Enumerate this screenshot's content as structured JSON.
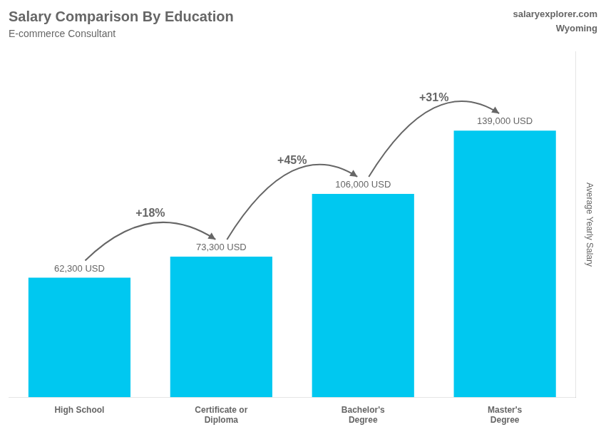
{
  "chart_data": {
    "type": "bar",
    "title": "Salary Comparison By Education",
    "subtitle": "E-commerce Consultant",
    "ylabel": "Average Yearly Salary",
    "categories": [
      "High School",
      "Certificate or\nDiploma",
      "Bachelor's\nDegree",
      "Master's\nDegree"
    ],
    "values": [
      62300,
      73300,
      106000,
      139000
    ],
    "value_labels": [
      "62,300 USD",
      "73,300 USD",
      "106,000 USD",
      "139,000 USD"
    ],
    "data_labels": true,
    "color": "#00C8F0",
    "ylim": [
      0,
      180000
    ],
    "grid": false,
    "tick_labels": "x",
    "annotations": [
      {
        "text": "salaryexplorer.com"
      },
      {
        "text": "Wyoming"
      },
      {
        "text": "+18%",
        "from": 0,
        "to": 1
      },
      {
        "text": "+45%",
        "from": 1,
        "to": 2
      },
      {
        "text": "+31%",
        "from": 2,
        "to": 3
      }
    ]
  }
}
